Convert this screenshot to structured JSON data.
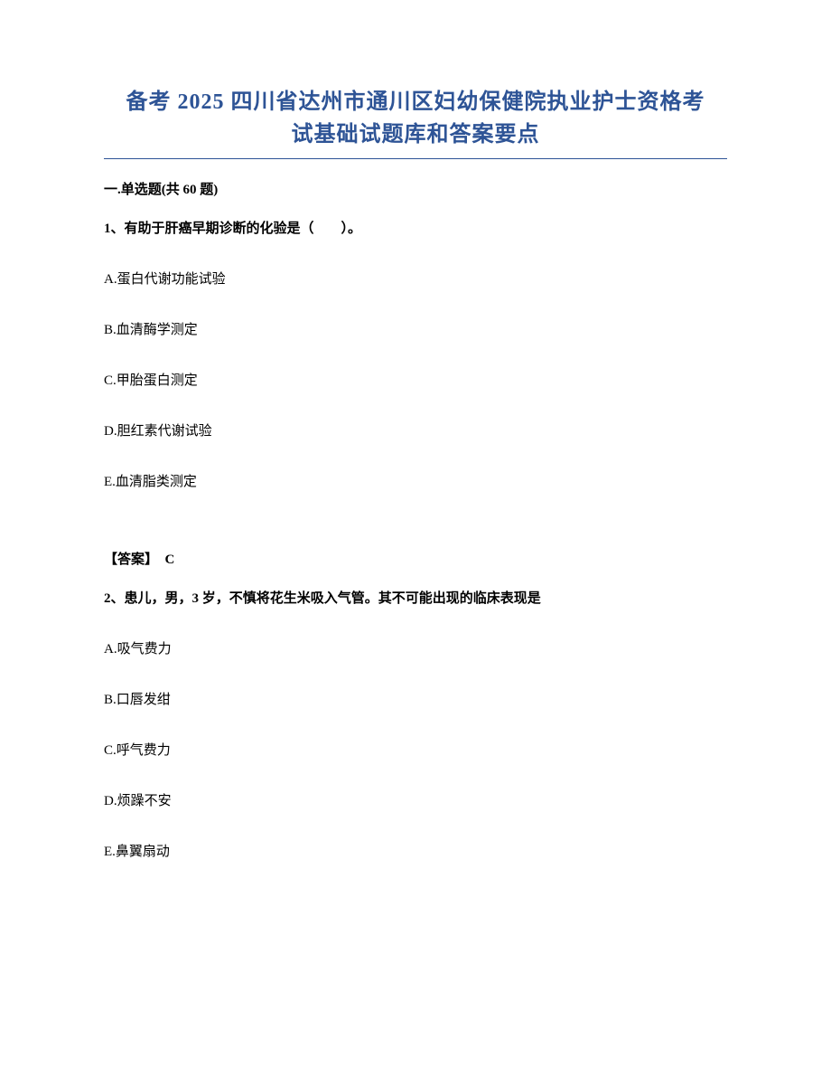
{
  "title": {
    "line1": "备考 2025 四川省达州市通川区妇幼保健院执业护士资格考",
    "line2": "试基础试题库和答案要点",
    "color": "#2e5496",
    "fontsize": 24
  },
  "section_header": "一.单选题(共 60 题)",
  "questions": [
    {
      "number": "1、",
      "text": "有助于肝癌早期诊断的化验是（　　）。",
      "options": [
        "A.蛋白代谢功能试验",
        "B.血清酶学测定",
        "C.甲胎蛋白测定",
        "D.胆红素代谢试验",
        "E.血清脂类测定"
      ],
      "answer_label": "【答案】",
      "answer_value": "C"
    },
    {
      "number": "2、",
      "text": "患儿，男，3 岁，不慎将花生米吸入气管。其不可能出现的临床表现是",
      "options": [
        "A.吸气费力",
        "B.口唇发绀",
        "C.呼气费力",
        "D.烦躁不安",
        "E.鼻翼扇动"
      ]
    }
  ],
  "styles": {
    "body_width": 920,
    "body_height": 1191,
    "background_color": "#ffffff",
    "text_color": "#000000",
    "body_fontsize": 15,
    "option_spacing": 32
  }
}
